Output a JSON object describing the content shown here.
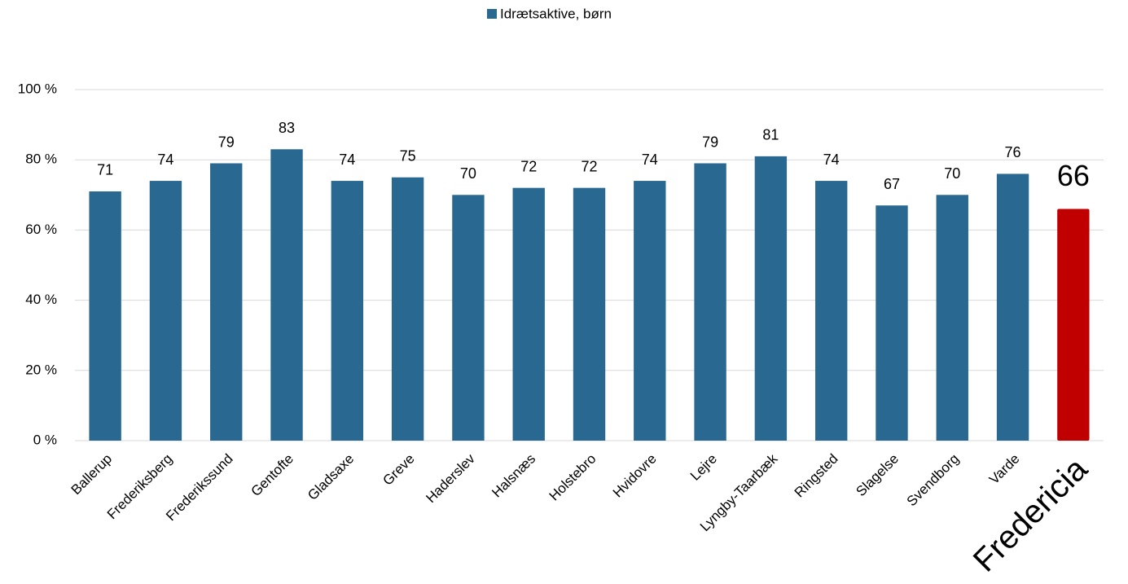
{
  "chart_data": {
    "type": "bar",
    "legend_position": "top",
    "series": [
      {
        "name": "Idrætsaktive, børn",
        "color": "#286891",
        "values": [
          71,
          74,
          79,
          83,
          74,
          75,
          70,
          72,
          72,
          74,
          79,
          81,
          74,
          67,
          70,
          76,
          66
        ]
      }
    ],
    "categories": [
      "Ballerup",
      "Frederiksberg",
      "Frederikssund",
      "Gentofte",
      "Gladsaxe",
      "Greve",
      "Haderslev",
      "Halsnæs",
      "Holstebro",
      "Hvidovre",
      "Lejre",
      "Lyngby-Taarbæk",
      "Ringsted",
      "Slagelse",
      "Svendborg",
      "Varde",
      "Fredericia"
    ],
    "highlight": {
      "category": "Fredericia",
      "color": "#c00000"
    },
    "ylim": [
      0,
      100
    ],
    "yticks": [
      {
        "value": 0,
        "label": "0 %"
      },
      {
        "value": 20,
        "label": "20 %"
      },
      {
        "value": 40,
        "label": "40 %"
      },
      {
        "value": 60,
        "label": "60 %"
      },
      {
        "value": 80,
        "label": "80 %"
      },
      {
        "value": 100,
        "label": "100 %"
      }
    ],
    "grid": true
  }
}
